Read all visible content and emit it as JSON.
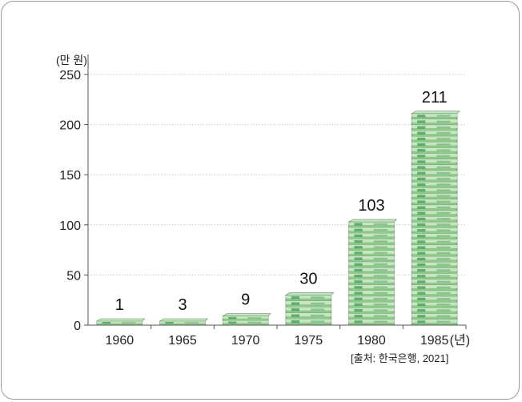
{
  "chart_data": {
    "type": "bar",
    "categories": [
      "1960",
      "1965",
      "1970",
      "1975",
      "1980",
      "1985"
    ],
    "values": [
      1,
      3,
      9,
      30,
      103,
      211
    ],
    "value_labels": [
      "1",
      "3",
      "9",
      "30",
      "103",
      "211"
    ],
    "ylabel": "(만 원)",
    "x_unit": "(년)",
    "ylim": [
      0,
      250
    ],
    "yticks": [
      0,
      50,
      100,
      150,
      200,
      250
    ],
    "grid": true,
    "source": "[출처: 한국은행, 2021]"
  },
  "colors": {
    "bill_light": "#c9e6c4",
    "bill_mid": "#8fc98a",
    "bill_dark": "#3f9a55",
    "bill_edge": "#5a8f5e",
    "grid": "#c8c8c8",
    "axis": "#555555"
  }
}
